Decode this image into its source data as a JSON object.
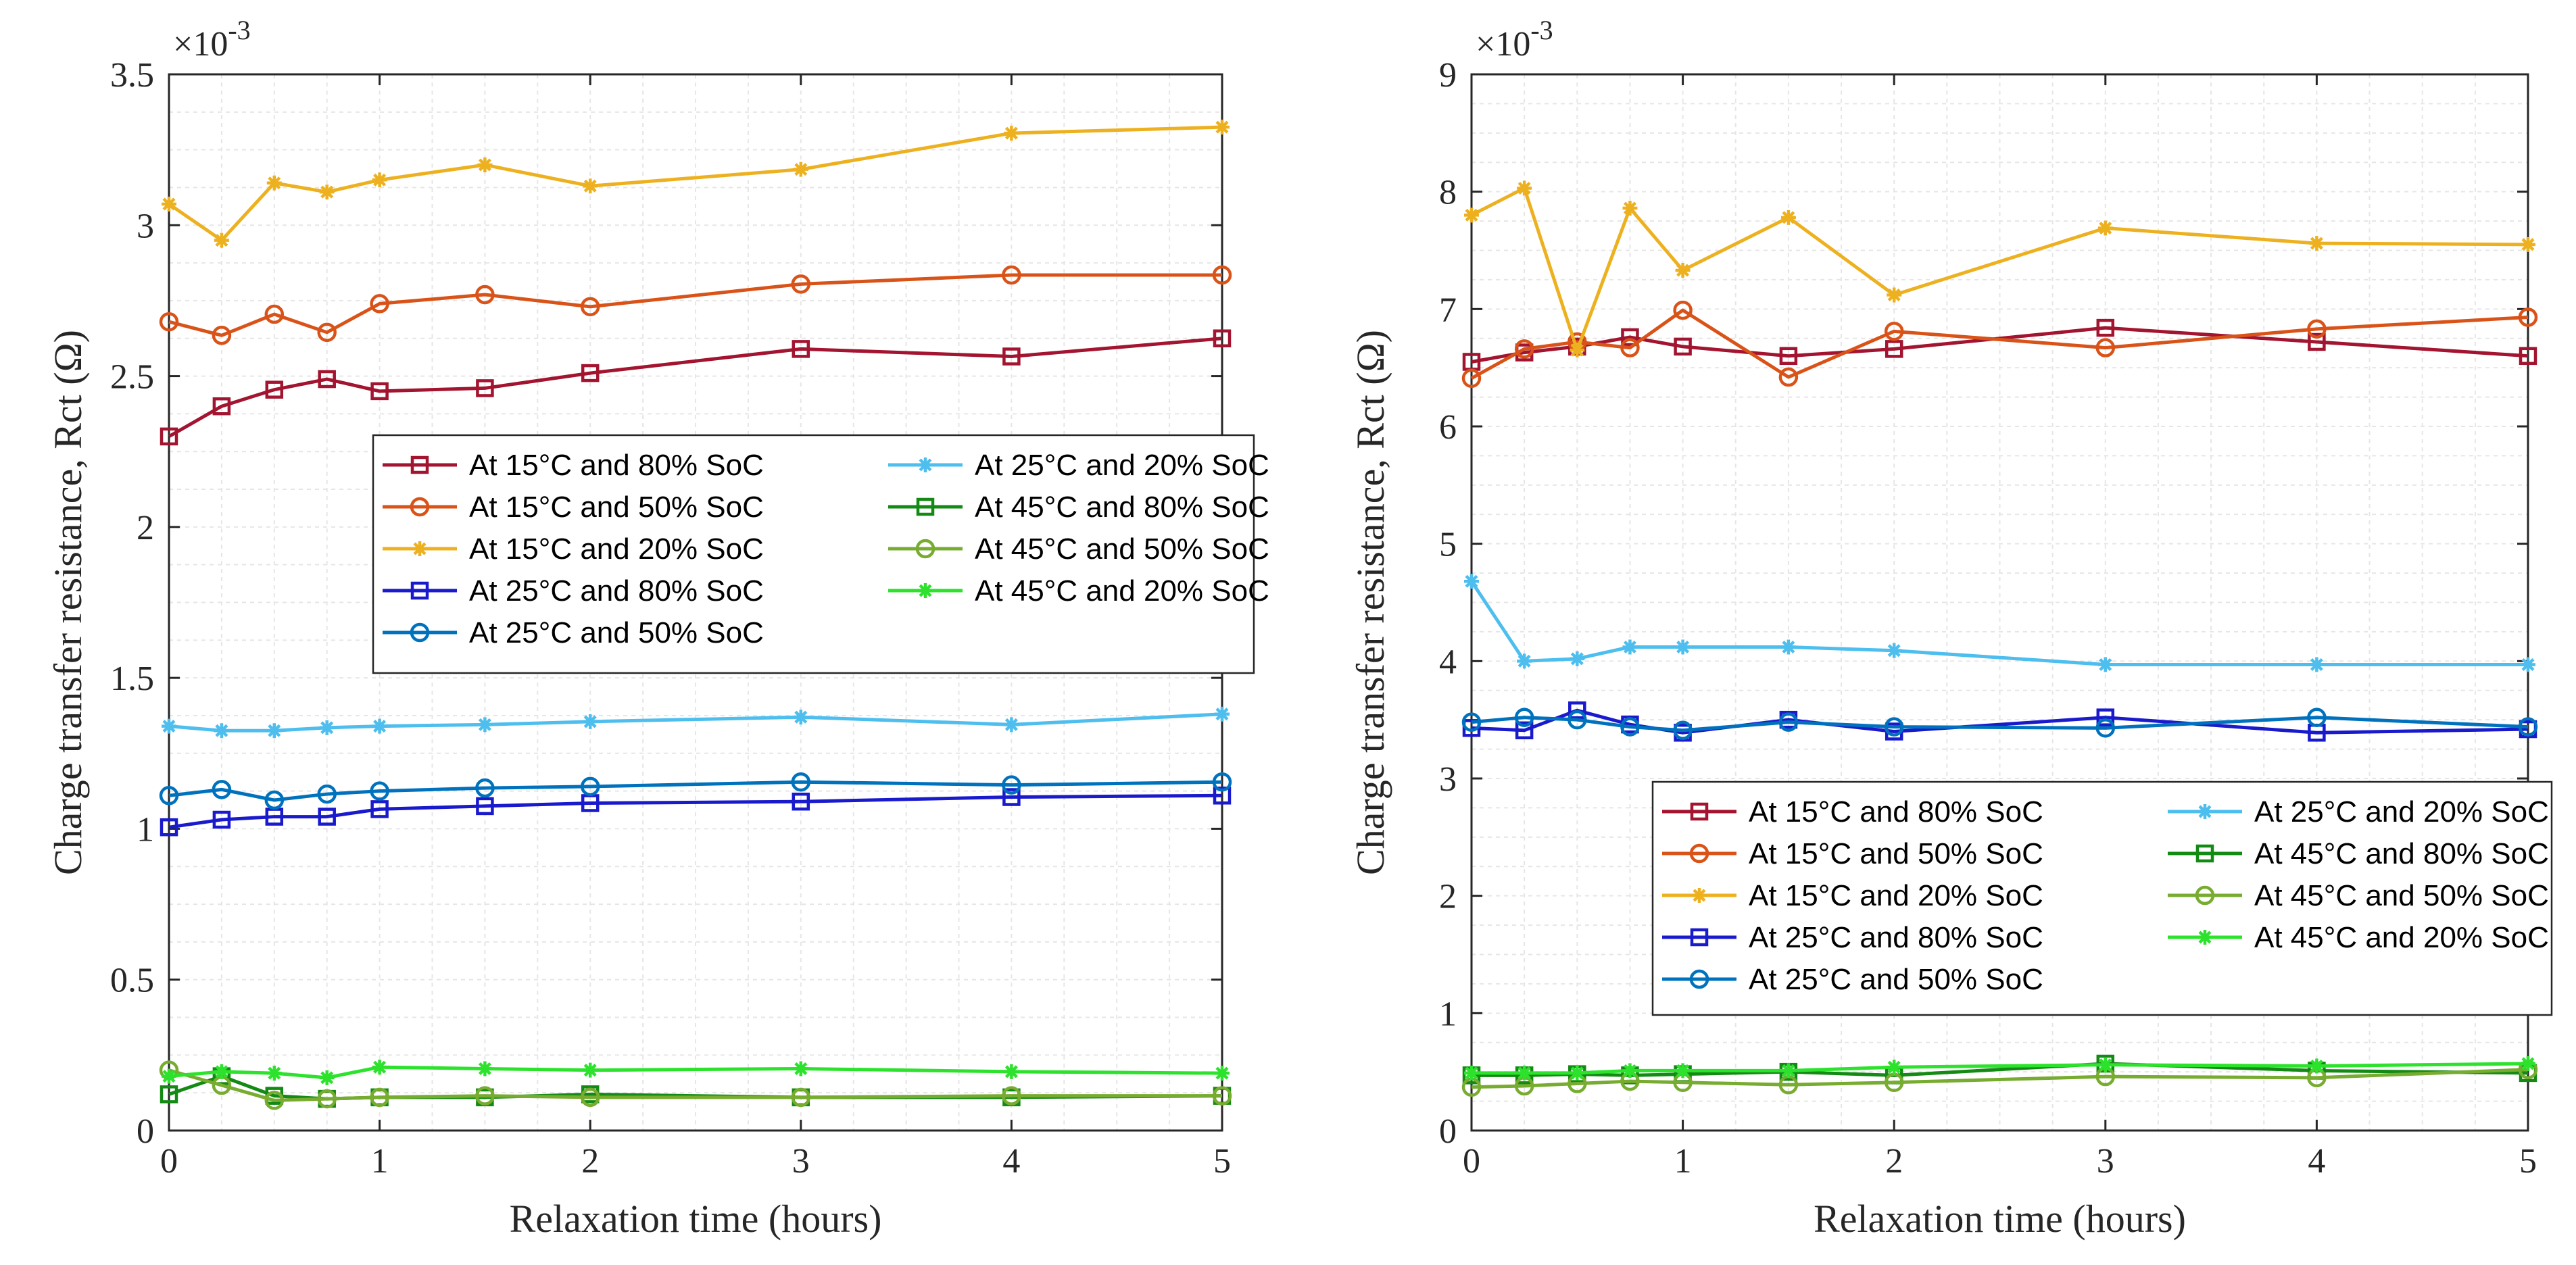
{
  "chart_data": [
    {
      "type": "line",
      "id": "left",
      "xlabel": "Relaxation time (hours)",
      "ylabel": "Charge transfer resistance, Rct (Ω)",
      "exponent_label": "×10",
      "exponent_power": "-3",
      "xlim": [
        0,
        5
      ],
      "ylim": [
        0,
        3.5
      ],
      "xticks": [
        0,
        1,
        2,
        3,
        4,
        5
      ],
      "xtick_labels": [
        "0",
        "1",
        "2",
        "3",
        "4",
        "5"
      ],
      "yticks": [
        0,
        0.5,
        1,
        1.5,
        2,
        2.5,
        3,
        3.5
      ],
      "ytick_labels": [
        "0",
        "0.5",
        "1",
        "1.5",
        "2",
        "2.5",
        "3",
        "3.5"
      ],
      "grid": true,
      "legend_placement": "center-right",
      "x": [
        0,
        0.25,
        0.5,
        0.75,
        1,
        1.5,
        2,
        3,
        4,
        5
      ],
      "series": [
        {
          "name": "At 15°C and 80% SoC",
          "color": "#A2142F",
          "marker": "square",
          "values": [
            2.3,
            2.4,
            2.455,
            2.49,
            2.45,
            2.46,
            2.51,
            2.59,
            2.565,
            2.625
          ]
        },
        {
          "name": "At 15°C and 50% SoC",
          "color": "#D95319",
          "marker": "circle",
          "values": [
            2.68,
            2.635,
            2.705,
            2.645,
            2.74,
            2.77,
            2.73,
            2.805,
            2.835,
            2.835
          ]
        },
        {
          "name": "At 15°C and 20% SoC",
          "color": "#EDB120",
          "marker": "star",
          "values": [
            3.07,
            2.95,
            3.14,
            3.11,
            3.15,
            3.2,
            3.13,
            3.185,
            3.305,
            3.325
          ]
        },
        {
          "name": "At 25°C and 80% SoC",
          "color": "#1A1ACD",
          "marker": "square",
          "values": [
            1.005,
            1.03,
            1.04,
            1.04,
            1.065,
            1.075,
            1.085,
            1.09,
            1.105,
            1.11
          ]
        },
        {
          "name": "At 25°C and 50% SoC",
          "color": "#0072BD",
          "marker": "circle",
          "values": [
            1.11,
            1.13,
            1.095,
            1.115,
            1.125,
            1.135,
            1.14,
            1.155,
            1.145,
            1.155
          ]
        },
        {
          "name": "At 25°C and 20% SoC",
          "color": "#4DBEEE",
          "marker": "star",
          "values": [
            1.34,
            1.325,
            1.325,
            1.335,
            1.34,
            1.345,
            1.355,
            1.37,
            1.345,
            1.38
          ]
        },
        {
          "name": "At 45°C and 80% SoC",
          "color": "#138A13",
          "marker": "square",
          "values": [
            0.12,
            0.18,
            0.115,
            0.105,
            0.11,
            0.11,
            0.12,
            0.11,
            0.11,
            0.115
          ]
        },
        {
          "name": "At 45°C and 50% SoC",
          "color": "#77AC30",
          "marker": "circle",
          "values": [
            0.2,
            0.15,
            0.1,
            0.105,
            0.11,
            0.115,
            0.11,
            0.11,
            0.115,
            0.115
          ]
        },
        {
          "name": "At 45°C and 20% SoC",
          "color": "#2CE22C",
          "marker": "star",
          "values": [
            0.18,
            0.195,
            0.19,
            0.175,
            0.21,
            0.205,
            0.2,
            0.205,
            0.195,
            0.19
          ]
        }
      ]
    },
    {
      "type": "line",
      "id": "right",
      "xlabel": "Relaxation time (hours)",
      "ylabel": "Charge transfer resistance, Rct (Ω)",
      "exponent_label": "×10",
      "exponent_power": "-3",
      "xlim": [
        0,
        5
      ],
      "ylim": [
        0,
        9
      ],
      "xticks": [
        0,
        1,
        2,
        3,
        4,
        5
      ],
      "xtick_labels": [
        "0",
        "1",
        "2",
        "3",
        "4",
        "5"
      ],
      "yticks": [
        0,
        1,
        2,
        3,
        4,
        5,
        6,
        7,
        8,
        9
      ],
      "ytick_labels": [
        "0",
        "1",
        "2",
        "3",
        "4",
        "5",
        "6",
        "7",
        "8",
        "9"
      ],
      "grid": true,
      "legend_placement": "lower-right",
      "x": [
        0,
        0.25,
        0.5,
        0.75,
        1,
        1.5,
        2,
        3,
        4,
        5
      ],
      "series": [
        {
          "name": "At 15°C and 80% SoC",
          "color": "#A2142F",
          "marker": "square",
          "values": [
            6.55,
            6.63,
            6.68,
            6.76,
            6.68,
            6.6,
            6.66,
            6.84,
            6.72,
            6.6
          ]
        },
        {
          "name": "At 15°C and 50% SoC",
          "color": "#D95319",
          "marker": "circle",
          "values": [
            6.41,
            6.66,
            6.72,
            6.67,
            6.99,
            6.42,
            6.81,
            6.67,
            6.83,
            6.93
          ]
        },
        {
          "name": "At 15°C and 20% SoC",
          "color": "#EDB120",
          "marker": "star",
          "values": [
            7.8,
            8.03,
            6.65,
            7.86,
            7.33,
            7.78,
            7.12,
            7.69,
            7.56,
            7.55
          ]
        },
        {
          "name": "At 25°C and 80% SoC",
          "color": "#1A1ACD",
          "marker": "square",
          "values": [
            3.43,
            3.41,
            3.58,
            3.46,
            3.39,
            3.5,
            3.4,
            3.52,
            3.39,
            3.42
          ]
        },
        {
          "name": "At 25°C and 50% SoC",
          "color": "#0072BD",
          "marker": "circle",
          "values": [
            3.48,
            3.52,
            3.5,
            3.44,
            3.41,
            3.48,
            3.44,
            3.43,
            3.52,
            3.44
          ]
        },
        {
          "name": "At 25°C and 20% SoC",
          "color": "#4DBEEE",
          "marker": "star",
          "values": [
            4.68,
            4.0,
            4.02,
            4.12,
            4.12,
            4.12,
            4.09,
            3.97,
            3.97,
            3.97
          ]
        },
        {
          "name": "At 45°C and 80% SoC",
          "color": "#138A13",
          "marker": "square",
          "values": [
            0.47,
            0.47,
            0.48,
            0.47,
            0.48,
            0.5,
            0.47,
            0.57,
            0.51,
            0.49
          ]
        },
        {
          "name": "At 45°C and 50% SoC",
          "color": "#77AC30",
          "marker": "circle",
          "values": [
            0.37,
            0.38,
            0.4,
            0.42,
            0.41,
            0.39,
            0.41,
            0.46,
            0.45,
            0.52
          ]
        },
        {
          "name": "At 45°C and 20% SoC",
          "color": "#2CE22C",
          "marker": "star",
          "values": [
            0.49,
            0.49,
            0.49,
            0.51,
            0.51,
            0.51,
            0.54,
            0.56,
            0.55,
            0.57
          ]
        }
      ]
    }
  ]
}
